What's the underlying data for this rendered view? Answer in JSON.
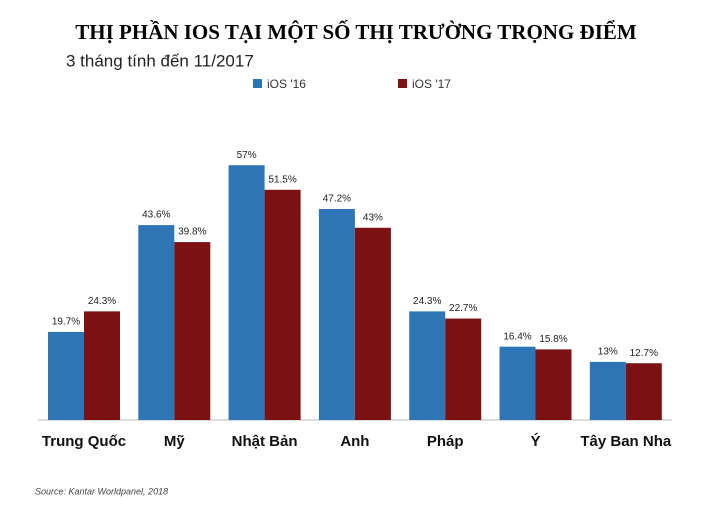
{
  "chart_data": {
    "type": "bar",
    "title": "THỊ PHẦN IOS TẠI MỘT SỐ THỊ TRƯỜNG TRỌNG ĐIỂM",
    "subtitle": "3 tháng tính đến 11/2017",
    "source": "Source: Kantar Worldpanel, 2018",
    "categories": [
      "Trung Quốc",
      "Mỹ",
      "Nhật Bản",
      "Anh",
      "Pháp",
      "Ý",
      "Tây Ban Nha"
    ],
    "series": [
      {
        "name": "iOS '16",
        "color": "#2e75b6",
        "values": [
          19.7,
          43.6,
          57,
          47.2,
          24.3,
          16.4,
          13
        ],
        "value_labels": [
          "19.7%",
          "43.6%",
          "57%",
          "47.2%",
          "24.3%",
          "16.4%",
          "13%"
        ]
      },
      {
        "name": "iOS '17",
        "color": "#7b1113",
        "values": [
          24.3,
          39.8,
          51.5,
          43,
          22.7,
          15.8,
          12.7
        ],
        "value_labels": [
          "24.3%",
          "39.8%",
          "51.5%",
          "43%",
          "22.7%",
          "15.8%",
          "12.7%"
        ]
      }
    ]
  }
}
